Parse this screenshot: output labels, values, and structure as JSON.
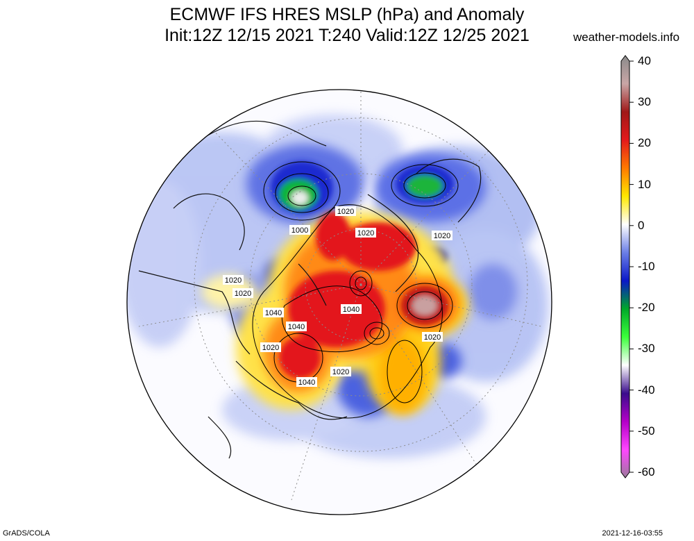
{
  "header": {
    "title_line1": "ECMWF IFS HRES MSLP (hPa) and Anomaly",
    "title_line2": "Init:12Z 12/15 2021 T:240 Valid:12Z 12/25 2021",
    "source": "weather-models.info"
  },
  "footer": {
    "left": "GrADS/COLA",
    "right": "2021-12-16-03:55"
  },
  "colorbar": {
    "ticks": [
      "40",
      "30",
      "20",
      "10",
      "0",
      "-10",
      "-20",
      "-30",
      "-40",
      "-50",
      "-60"
    ],
    "stops": [
      "#8a8a8a",
      "#c9a6a6",
      "#a01818",
      "#e31a1c",
      "#ff7a00",
      "#ffe800",
      "#ffffff",
      "#6b7fe6",
      "#0a18c8",
      "#00a82a",
      "#3bff3b",
      "#ffffff",
      "#3a0c8c",
      "#b400c8",
      "#ff46ff",
      "#9a7a9a"
    ]
  },
  "map": {
    "isobar_labels": [
      {
        "text": "1020",
        "id": "1020-a"
      },
      {
        "text": "1000",
        "id": "1000-a"
      },
      {
        "text": "1020",
        "id": "1020-b"
      },
      {
        "text": "1020",
        "id": "1020-c"
      },
      {
        "text": "1020",
        "id": "1020-d"
      },
      {
        "text": "1020",
        "id": "1020-e"
      },
      {
        "text": "1040",
        "id": "1040-a"
      },
      {
        "text": "1040",
        "id": "1040-b"
      },
      {
        "text": "1040",
        "id": "1040-c"
      },
      {
        "text": "1020",
        "id": "1020-f"
      },
      {
        "text": "1020",
        "id": "1020-g"
      },
      {
        "text": "1040",
        "id": "1040-d"
      },
      {
        "text": "1020",
        "id": "1020-h"
      }
    ]
  }
}
